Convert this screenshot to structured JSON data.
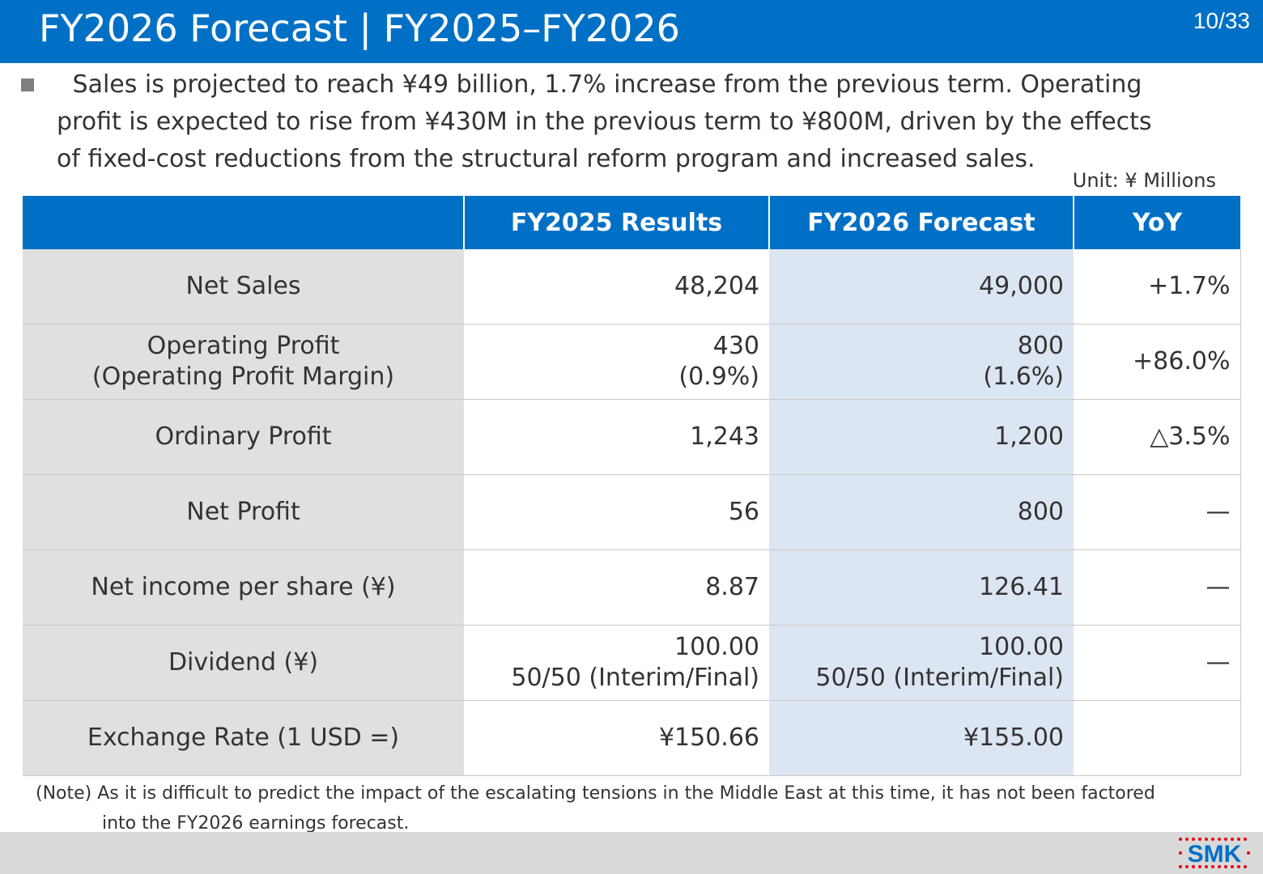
{
  "header": {
    "title": "FY2026 Forecast | FY2025–FY2026",
    "page": "10/33"
  },
  "summary": {
    "line1": " Sales is projected to reach ¥49 billion, 1.7% increase from the previous term. Operating",
    "line2": "profit is expected to rise from ¥430M in the previous term to ¥800M, driven by the effects",
    "line3": "of fixed-cost reductions from the structural reform program and increased sales."
  },
  "unit": "Unit: ¥ Millions",
  "table": {
    "headers": [
      "",
      "FY2025 Results",
      "FY2026 Forecast",
      "YoY"
    ],
    "rows": [
      {
        "label": [
          "Net Sales"
        ],
        "fy2025": [
          "48,204"
        ],
        "fy2026": [
          "49,000"
        ],
        "yoy": "+1.7%"
      },
      {
        "label": [
          "Operating Profit",
          "(Operating Profit Margin)"
        ],
        "fy2025": [
          "430",
          "(0.9%)"
        ],
        "fy2026": [
          "800",
          "(1.6%)"
        ],
        "yoy": "+86.0%"
      },
      {
        "label": [
          "Ordinary Profit"
        ],
        "fy2025": [
          "1,243"
        ],
        "fy2026": [
          "1,200"
        ],
        "yoy": "△3.5%"
      },
      {
        "label": [
          "Net Profit"
        ],
        "fy2025": [
          "56"
        ],
        "fy2026": [
          "800"
        ],
        "yoy": "—"
      },
      {
        "label": [
          "Net income per share (¥)"
        ],
        "fy2025": [
          "8.87"
        ],
        "fy2026": [
          "126.41"
        ],
        "yoy": "—"
      },
      {
        "label": [
          "Dividend (¥)"
        ],
        "fy2025": [
          "100.00",
          "50/50 (Interim/Final)"
        ],
        "fy2026": [
          "100.00",
          "50/50 (Interim/Final)"
        ],
        "yoy": "—"
      },
      {
        "label": [
          "Exchange Rate (1 USD =)"
        ],
        "fy2025": [
          "¥150.66"
        ],
        "fy2026": [
          "¥155.00"
        ],
        "yoy": ""
      }
    ]
  },
  "note": {
    "line1": "(Note) As it is difficult to predict the impact of the escalating tensions in the Middle East at this time, it has not been factored",
    "line2": "into the FY2026 earnings forecast."
  },
  "footer": {
    "logo_text": "SMK",
    "brand_color": "#0070c6",
    "dot_color": "#e60012"
  },
  "colors": {
    "header_bg": "#0070c6",
    "label_cell_bg": "#e0e0e0",
    "forecast_cell_bg": "#dce6f2",
    "footer_bg": "#d9d9d9"
  }
}
